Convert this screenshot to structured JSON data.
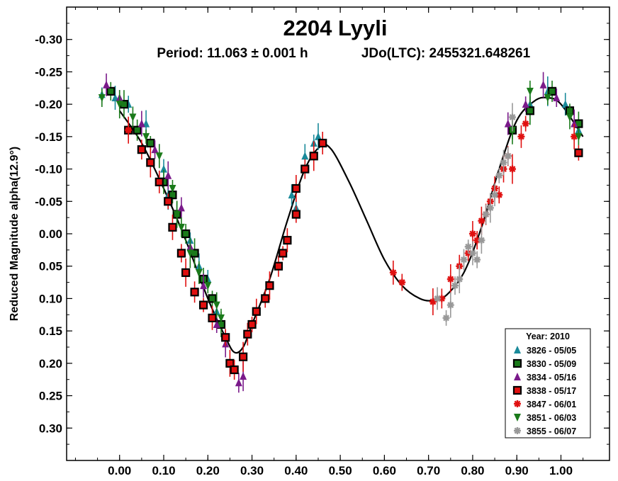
{
  "chart_data": {
    "type": "scatter",
    "title": "2204 Lyyli",
    "subtitle_period": "Period: 11.063 ± 0.001 h",
    "subtitle_jd": "JDo(LTC): 2455321.648261",
    "xlabel": "",
    "ylabel": "Reduced Magnitude alpha(12.9°)",
    "xlim": [
      -0.12,
      1.11
    ],
    "ylim": [
      -0.35,
      0.35
    ],
    "y_inverted": true,
    "x_ticks": [
      "0.00",
      "0.10",
      "0.20",
      "0.30",
      "0.40",
      "0.50",
      "0.60",
      "0.70",
      "0.80",
      "0.90",
      "1.00"
    ],
    "y_ticks": [
      "-0.30",
      "-0.25",
      "-0.20",
      "-0.15",
      "-0.10",
      "-0.05",
      "0.00",
      "0.05",
      "0.10",
      "0.15",
      "0.20",
      "0.25",
      "0.30"
    ],
    "legend_title": "Year: 2010",
    "legend_position": "bottom-right",
    "fit_curve": [
      [
        0.0,
        -0.19
      ],
      [
        0.05,
        -0.14
      ],
      [
        0.1,
        -0.07
      ],
      [
        0.15,
        0.01
      ],
      [
        0.2,
        0.1
      ],
      [
        0.24,
        0.16
      ],
      [
        0.26,
        0.183
      ],
      [
        0.28,
        0.175
      ],
      [
        0.3,
        0.14
      ],
      [
        0.34,
        0.07
      ],
      [
        0.38,
        -0.02
      ],
      [
        0.42,
        -0.1
      ],
      [
        0.455,
        -0.135
      ],
      [
        0.48,
        -0.13
      ],
      [
        0.52,
        -0.08
      ],
      [
        0.56,
        -0.02
      ],
      [
        0.6,
        0.04
      ],
      [
        0.64,
        0.08
      ],
      [
        0.68,
        0.1
      ],
      [
        0.71,
        0.103
      ],
      [
        0.74,
        0.095
      ],
      [
        0.78,
        0.06
      ],
      [
        0.82,
        -0.01
      ],
      [
        0.86,
        -0.1
      ],
      [
        0.9,
        -0.175
      ],
      [
        0.94,
        -0.205
      ],
      [
        0.97,
        -0.21
      ],
      [
        1.0,
        -0.2
      ],
      [
        1.05,
        -0.15
      ]
    ],
    "series": [
      {
        "name": "3826 - 05/05",
        "marker": "triangle-up",
        "color": "#1a8a9a",
        "points": [
          [
            -0.04,
            -0.215
          ],
          [
            -0.01,
            -0.21
          ],
          [
            0.02,
            -0.2
          ],
          [
            0.06,
            -0.17
          ],
          [
            0.1,
            -0.1
          ],
          [
            0.11,
            -0.06
          ],
          [
            0.13,
            -0.03
          ],
          [
            0.16,
            0.01
          ],
          [
            0.18,
            0.05
          ],
          [
            0.2,
            0.07
          ],
          [
            0.22,
            0.12
          ],
          [
            0.39,
            -0.06
          ],
          [
            0.4,
            -0.04
          ],
          [
            0.42,
            -0.12
          ],
          [
            0.44,
            -0.14
          ],
          [
            0.45,
            -0.15
          ],
          [
            0.93,
            -0.2
          ],
          [
            0.97,
            -0.22
          ],
          [
            1.01,
            -0.2
          ],
          [
            1.04,
            -0.16
          ]
        ]
      },
      {
        "name": "3830 - 05/09",
        "marker": "square",
        "color": "#1a7a1a",
        "points": [
          [
            -0.02,
            -0.22
          ],
          [
            0.01,
            -0.2
          ],
          [
            0.04,
            -0.16
          ],
          [
            0.07,
            -0.14
          ],
          [
            0.1,
            -0.08
          ],
          [
            0.12,
            -0.06
          ],
          [
            0.13,
            -0.03
          ],
          [
            0.15,
            0.0
          ],
          [
            0.17,
            0.03
          ],
          [
            0.19,
            0.07
          ],
          [
            0.21,
            0.1
          ],
          [
            0.23,
            0.14
          ],
          [
            0.89,
            -0.16
          ],
          [
            0.93,
            -0.19
          ],
          [
            0.98,
            -0.22
          ],
          [
            1.02,
            -0.19
          ],
          [
            1.04,
            -0.17
          ]
        ]
      },
      {
        "name": "3834 - 05/16",
        "marker": "triangle-up",
        "color": "#7a1a8a",
        "points": [
          [
            -0.03,
            -0.23
          ],
          [
            0.0,
            -0.21
          ],
          [
            0.05,
            -0.17
          ],
          [
            0.08,
            -0.13
          ],
          [
            0.11,
            -0.09
          ],
          [
            0.14,
            -0.04
          ],
          [
            0.16,
            0.02
          ],
          [
            0.19,
            0.08
          ],
          [
            0.22,
            0.14
          ],
          [
            0.24,
            0.17
          ],
          [
            0.27,
            0.23
          ],
          [
            0.28,
            0.22
          ],
          [
            0.88,
            -0.17
          ],
          [
            0.92,
            -0.2
          ],
          [
            0.96,
            -0.23
          ],
          [
            0.99,
            -0.21
          ],
          [
            1.03,
            -0.17
          ]
        ]
      },
      {
        "name": "3838 - 05/17",
        "marker": "square",
        "color": "#e01010",
        "points": [
          [
            0.02,
            -0.16
          ],
          [
            0.05,
            -0.13
          ],
          [
            0.07,
            -0.11
          ],
          [
            0.09,
            -0.08
          ],
          [
            0.11,
            -0.05
          ],
          [
            0.12,
            -0.01
          ],
          [
            0.14,
            0.03
          ],
          [
            0.15,
            0.06
          ],
          [
            0.17,
            0.09
          ],
          [
            0.19,
            0.11
          ],
          [
            0.21,
            0.13
          ],
          [
            0.24,
            0.16
          ],
          [
            0.25,
            0.2
          ],
          [
            0.26,
            0.21
          ],
          [
            0.28,
            0.19
          ],
          [
            0.29,
            0.155
          ],
          [
            0.3,
            0.14
          ],
          [
            0.31,
            0.12
          ],
          [
            0.33,
            0.1
          ],
          [
            0.34,
            0.08
          ],
          [
            0.36,
            0.05
          ],
          [
            0.37,
            0.03
          ],
          [
            0.38,
            0.01
          ],
          [
            0.4,
            -0.03
          ],
          [
            0.4,
            -0.07
          ],
          [
            0.42,
            -0.1
          ],
          [
            0.44,
            -0.12
          ],
          [
            0.46,
            -0.14
          ],
          [
            1.04,
            -0.125
          ]
        ]
      },
      {
        "name": "3847 - 06/01",
        "marker": "asterisk",
        "color": "#e01010",
        "points": [
          [
            0.02,
            -0.16
          ],
          [
            0.62,
            0.06
          ],
          [
            0.64,
            0.075
          ],
          [
            0.71,
            0.105
          ],
          [
            0.73,
            0.1
          ],
          [
            0.75,
            0.07
          ],
          [
            0.77,
            0.05
          ],
          [
            0.79,
            0.03
          ],
          [
            0.8,
            0.0
          ],
          [
            0.81,
            0.01
          ],
          [
            0.82,
            -0.02
          ],
          [
            0.83,
            -0.03
          ],
          [
            0.84,
            -0.05
          ],
          [
            0.85,
            -0.07
          ],
          [
            0.86,
            -0.06
          ],
          [
            0.87,
            -0.1
          ],
          [
            0.88,
            -0.12
          ],
          [
            0.89,
            -0.1
          ],
          [
            0.91,
            -0.15
          ],
          [
            0.92,
            -0.17
          ],
          [
            1.03,
            -0.15
          ]
        ]
      },
      {
        "name": "3851 - 06/03",
        "marker": "triangle-down",
        "color": "#1a7a1a",
        "points": [
          [
            -0.04,
            -0.21
          ],
          [
            0.0,
            -0.2
          ],
          [
            0.03,
            -0.18
          ],
          [
            0.06,
            -0.15
          ],
          [
            0.09,
            -0.12
          ],
          [
            0.12,
            -0.07
          ],
          [
            0.13,
            -0.03
          ],
          [
            0.14,
            -0.01
          ],
          [
            0.16,
            0.03
          ],
          [
            0.18,
            0.06
          ],
          [
            0.2,
            0.08
          ],
          [
            0.22,
            0.11
          ],
          [
            0.23,
            0.13
          ],
          [
            0.89,
            -0.16
          ],
          [
            0.93,
            -0.22
          ],
          [
            0.97,
            -0.21
          ],
          [
            1.02,
            -0.18
          ],
          [
            1.04,
            -0.15
          ]
        ]
      },
      {
        "name": "3855 - 06/07",
        "marker": "asterisk",
        "color": "#999999",
        "points": [
          [
            0.72,
            0.1
          ],
          [
            0.74,
            0.13
          ],
          [
            0.75,
            0.11
          ],
          [
            0.76,
            0.08
          ],
          [
            0.77,
            0.07
          ],
          [
            0.78,
            0.04
          ],
          [
            0.79,
            0.02
          ],
          [
            0.8,
            0.03
          ],
          [
            0.81,
            0.04
          ],
          [
            0.82,
            0.01
          ],
          [
            0.83,
            -0.03
          ],
          [
            0.84,
            -0.04
          ],
          [
            0.85,
            -0.06
          ],
          [
            0.86,
            -0.09
          ],
          [
            0.87,
            -0.11
          ],
          [
            0.88,
            -0.12
          ],
          [
            0.89,
            -0.18
          ]
        ]
      }
    ]
  }
}
